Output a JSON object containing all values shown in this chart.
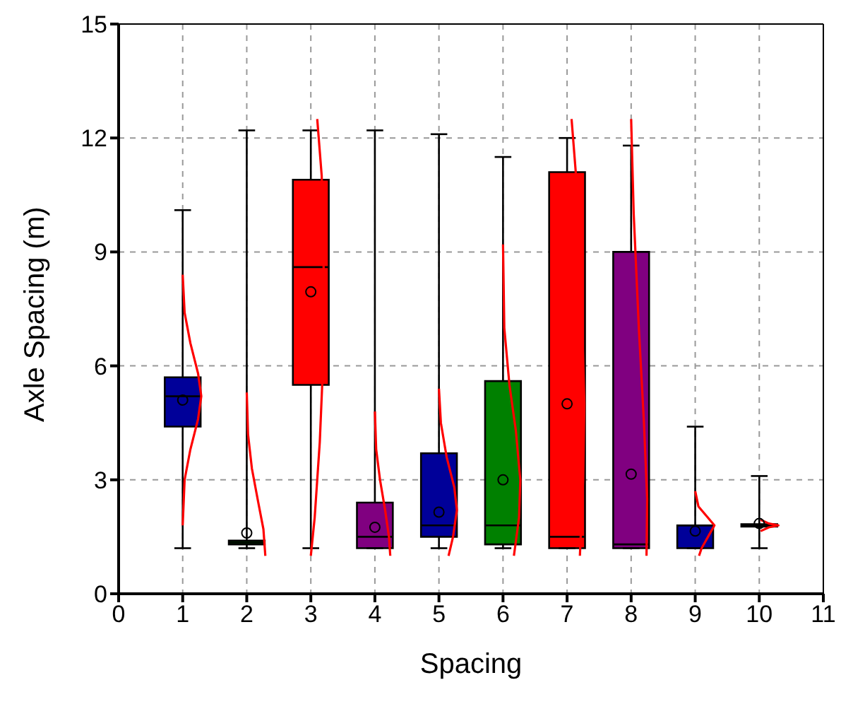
{
  "chart_data": {
    "type": "box",
    "xlabel": "Spacing",
    "ylabel": "Axle Spacing (m)",
    "x": [
      1,
      2,
      3,
      4,
      5,
      6,
      7,
      8,
      9,
      10
    ],
    "colors": [
      "#000099",
      "#008000",
      "#ff0000",
      "#800080",
      "#000099",
      "#008000",
      "#ff0000",
      "#800080",
      "#000099",
      "#008000"
    ],
    "boxes": [
      {
        "low": 1.2,
        "q1": 4.4,
        "median": 5.2,
        "q3": 5.7,
        "high": 10.1,
        "mean": 5.1
      },
      {
        "low": 1.2,
        "q1": 1.3,
        "median": 1.35,
        "q3": 1.4,
        "high": 12.2,
        "mean": 1.6
      },
      {
        "low": 1.2,
        "q1": 5.5,
        "median": 8.6,
        "q3": 10.9,
        "high": 12.2,
        "mean": 7.95
      },
      {
        "low": 1.2,
        "q1": 1.2,
        "median": 1.5,
        "q3": 2.4,
        "high": 12.2,
        "mean": 1.75
      },
      {
        "low": 1.2,
        "q1": 1.5,
        "median": 1.8,
        "q3": 3.7,
        "high": 12.1,
        "mean": 2.15
      },
      {
        "low": 1.2,
        "q1": 1.3,
        "median": 1.8,
        "q3": 5.6,
        "high": 11.5,
        "mean": 3.0
      },
      {
        "low": 1.2,
        "q1": 1.2,
        "median": 1.5,
        "q3": 11.1,
        "high": 12.0,
        "mean": 5.0
      },
      {
        "low": 1.2,
        "q1": 1.2,
        "median": 1.3,
        "q3": 9.0,
        "high": 11.8,
        "mean": 3.15
      },
      {
        "low": 1.2,
        "q1": 1.2,
        "median": 1.8,
        "q3": 1.8,
        "high": 4.4,
        "mean": 1.65
      },
      {
        "low": 1.2,
        "q1": 1.77,
        "median": 1.8,
        "q3": 1.83,
        "high": 3.1,
        "mean": 1.85
      }
    ],
    "series": [
      {
        "type": "line",
        "color": "#ff0000",
        "x": [
          1.0,
          1.03,
          1.12,
          1.24,
          1.29,
          1.24,
          1.12,
          1.03,
          1.0
        ],
        "values": [
          1.8,
          3.0,
          3.8,
          4.6,
          5.2,
          5.8,
          6.6,
          7.4,
          8.4
        ]
      },
      {
        "type": "line",
        "color": "#ff0000",
        "x": [
          2.0,
          2.02,
          2.08,
          2.18,
          2.26,
          2.29
        ],
        "values": [
          5.3,
          4.2,
          3.3,
          2.4,
          1.7,
          1.0
        ]
      },
      {
        "type": "line",
        "color": "#ff0000",
        "x": [
          3.1,
          3.17,
          3.2,
          3.19,
          3.14,
          3.06,
          3.0
        ],
        "values": [
          12.5,
          11.0,
          8.6,
          6.0,
          4.0,
          2.0,
          1.0
        ]
      },
      {
        "type": "line",
        "color": "#ff0000",
        "x": [
          4.0,
          4.02,
          4.08,
          4.16,
          4.22,
          4.24
        ],
        "values": [
          4.8,
          3.8,
          3.0,
          2.2,
          1.5,
          1.0
        ]
      },
      {
        "type": "line",
        "color": "#ff0000",
        "x": [
          5.0,
          5.03,
          5.12,
          5.24,
          5.28,
          5.22,
          5.15
        ],
        "values": [
          5.4,
          4.5,
          3.6,
          2.8,
          2.2,
          1.5,
          1.0
        ]
      },
      {
        "type": "line",
        "color": "#ff0000",
        "x": [
          6.0,
          6.02,
          6.1,
          6.2,
          6.27,
          6.25,
          6.17
        ],
        "values": [
          9.2,
          7.0,
          5.5,
          4.3,
          3.0,
          2.0,
          1.0
        ]
      },
      {
        "type": "line",
        "color": "#ff0000",
        "x": [
          7.07,
          7.14,
          7.22,
          7.27,
          7.25,
          7.2
        ],
        "values": [
          12.5,
          11.0,
          8.0,
          5.0,
          3.0,
          1.0
        ]
      },
      {
        "type": "line",
        "color": "#ff0000",
        "x": [
          8.0,
          8.04,
          8.12,
          8.2,
          8.25,
          8.24
        ],
        "values": [
          12.5,
          10.0,
          7.0,
          4.5,
          2.5,
          1.0
        ]
      },
      {
        "type": "line",
        "color": "#ff0000",
        "x": [
          9.0,
          9.05,
          9.2,
          9.3,
          9.2,
          9.1,
          9.06
        ],
        "values": [
          2.7,
          2.3,
          2.0,
          1.8,
          1.5,
          1.2,
          1.0
        ]
      },
      {
        "type": "line",
        "color": "#ff0000",
        "x": [
          10.02,
          10.15,
          10.3,
          10.15,
          10.02
        ],
        "values": [
          1.95,
          1.85,
          1.8,
          1.75,
          1.65
        ]
      }
    ],
    "xlim": [
      0,
      11
    ],
    "xticks": [
      0,
      1,
      2,
      3,
      4,
      5,
      6,
      7,
      8,
      9,
      10,
      11
    ],
    "ylim": [
      0,
      15
    ],
    "yticks": [
      0,
      3,
      6,
      9,
      12,
      15
    ],
    "grid": true
  }
}
